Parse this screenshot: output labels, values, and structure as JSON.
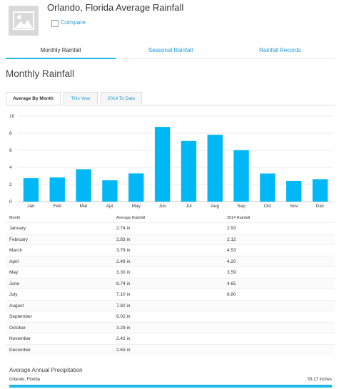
{
  "header": {
    "title": "Orlando, Florida Average Rainfall",
    "compare_label": "Compare"
  },
  "tabs": [
    {
      "label": "Monthly Rainfall",
      "active": true
    },
    {
      "label": "Seasonal Rainfall",
      "active": false
    },
    {
      "label": "Rainfall Records",
      "active": false
    }
  ],
  "section_title": "Monthly Rainfall",
  "subtabs": [
    {
      "label": "Average By Month",
      "active": true
    },
    {
      "label": "This Year",
      "active": false
    },
    {
      "label": "2014 To Date",
      "active": false
    }
  ],
  "colors": {
    "accent": "#1fb8e8",
    "bar": "#00b8f5",
    "link": "#1c9ad6"
  },
  "chart_data": {
    "type": "bar",
    "categories": [
      "Jan",
      "Feb",
      "Mar",
      "Apr",
      "May",
      "Jun",
      "Jul",
      "Aug",
      "Sep",
      "Oct",
      "Nov",
      "Dec"
    ],
    "values": [
      2.74,
      2.83,
      3.79,
      2.49,
      3.3,
      8.74,
      7.1,
      7.82,
      6.02,
      3.29,
      2.42,
      2.63
    ],
    "yticks": [
      0,
      2,
      4,
      6,
      8,
      10
    ],
    "ylim": [
      0,
      10
    ],
    "grid": true
  },
  "table": {
    "headers": [
      "Month",
      "Average Rainfall",
      "2014 Rainfall"
    ],
    "rows": [
      [
        "January",
        "2.74 in",
        "2.93"
      ],
      [
        "February",
        "2.83 in",
        "2.12"
      ],
      [
        "March",
        "3.79 in",
        "4.53"
      ],
      [
        "April",
        "2.49 in",
        "4.20"
      ],
      [
        "May",
        "3.30 in",
        "3.59"
      ],
      [
        "June",
        "8.74 in",
        "4.65"
      ],
      [
        "July",
        "7.10 in",
        "8.80"
      ],
      [
        "August",
        "7.82 in",
        ""
      ],
      [
        "September",
        "6.02 in",
        ""
      ],
      [
        "October",
        "3.29 in",
        ""
      ],
      [
        "November",
        "2.42 in",
        ""
      ],
      [
        "December",
        "2.63 in",
        ""
      ]
    ]
  },
  "annual": {
    "title": "Average Annual Precipitation",
    "location": "Orlando, Florida",
    "value": "53.17 inches",
    "fill_fraction": 1.0
  }
}
